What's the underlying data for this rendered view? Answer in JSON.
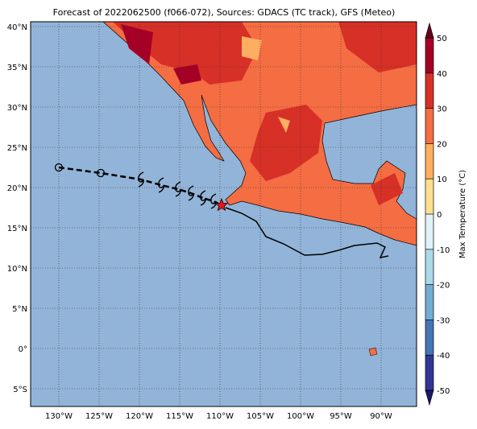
{
  "title": "Forecast of 2022062500 (f066-072), Sources: GDACS (TC track), GFS (Meteo)",
  "map": {
    "lon_range": [
      -133.5,
      -85.6
    ],
    "lat_range": [
      -7.2,
      40.6
    ],
    "lon_ticks": [
      {
        "value": -130,
        "label": "130°W"
      },
      {
        "value": -125,
        "label": "125°W"
      },
      {
        "value": -120,
        "label": "120°W"
      },
      {
        "value": -115,
        "label": "115°W"
      },
      {
        "value": -110,
        "label": "110°W"
      },
      {
        "value": -105,
        "label": "105°W"
      },
      {
        "value": -100,
        "label": "100°W"
      },
      {
        "value": -95,
        "label": "95°W"
      },
      {
        "value": -90,
        "label": "90°W"
      }
    ],
    "lat_ticks": [
      {
        "value": 40,
        "label": "40°N"
      },
      {
        "value": 35,
        "label": "35°N"
      },
      {
        "value": 30,
        "label": "30°N"
      },
      {
        "value": 25,
        "label": "25°N"
      },
      {
        "value": 20,
        "label": "20°N"
      },
      {
        "value": 15,
        "label": "15°N"
      },
      {
        "value": 10,
        "label": "10°N"
      },
      {
        "value": 5,
        "label": "5°N"
      },
      {
        "value": 0,
        "label": "0°"
      },
      {
        "value": -5,
        "label": "5°S"
      }
    ],
    "track": [
      {
        "lon": -130,
        "lat": 22.5,
        "marker": "circle"
      },
      {
        "lon": -124.8,
        "lat": 21.8,
        "marker": "circle"
      },
      {
        "lon": -119.8,
        "lat": 21.0,
        "marker": "storm"
      },
      {
        "lon": -117.3,
        "lat": 20.3,
        "marker": "storm"
      },
      {
        "lon": -115.2,
        "lat": 19.8,
        "marker": "storm"
      },
      {
        "lon": -113.6,
        "lat": 19.3,
        "marker": "storm"
      },
      {
        "lon": -112.1,
        "lat": 18.7,
        "marker": "storm"
      },
      {
        "lon": -110.8,
        "lat": 18.3,
        "marker": "storm"
      },
      {
        "lon": -109.8,
        "lat": 17.8,
        "marker": "star"
      }
    ]
  },
  "colorbar": {
    "label": "Max Temperature (°C)",
    "range": [
      -50,
      50
    ],
    "ticks": [
      50,
      40,
      30,
      20,
      10,
      0,
      -10,
      -20,
      -30,
      -40,
      -50
    ],
    "colors": [
      "#313695",
      "#4575b4",
      "#74add1",
      "#abd9e9",
      "#e0f3f8",
      "#fee090",
      "#fdae61",
      "#f46d43",
      "#d73027",
      "#a50026"
    ]
  }
}
